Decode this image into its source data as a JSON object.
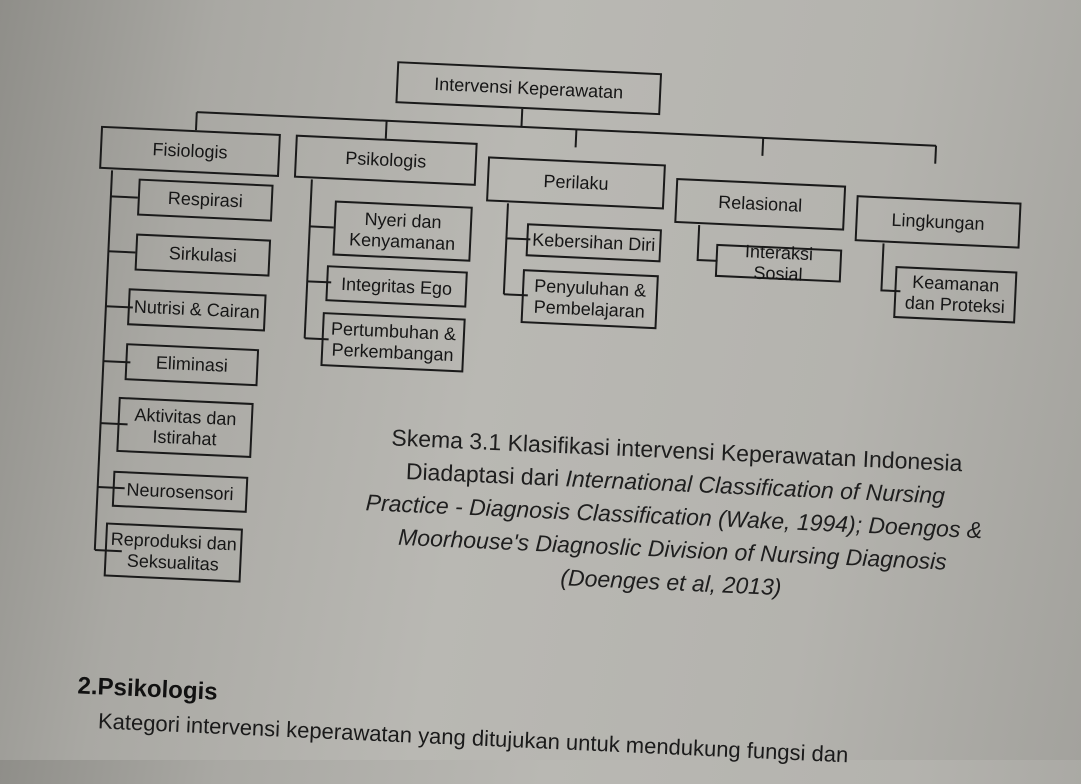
{
  "diagram": {
    "root": "Intervensi Keperawatan",
    "categories": [
      {
        "label": "Fisiologis",
        "children": [
          "Respirasi",
          "Sirkulasi",
          "Nutrisi & Cairan",
          "Eliminasi",
          "Aktivitas dan\nIstirahat",
          "Neurosensori",
          "Reproduksi dan\nSeksualitas"
        ]
      },
      {
        "label": "Psikologis",
        "children": [
          "Nyeri dan\nKenyamanan",
          "Integritas Ego",
          "Pertumbuhan &\nPerkembangan"
        ]
      },
      {
        "label": "Perilaku",
        "children": [
          "Kebersihan Diri",
          "Penyuluhan &\nPembelajaran"
        ]
      },
      {
        "label": "Relasional",
        "children": [
          "Interaksi Sosial"
        ]
      },
      {
        "label": "Lingkungan",
        "children": [
          "Keamanan\ndan Proteksi"
        ]
      }
    ]
  },
  "caption": {
    "line1": "Skema 3.1 Klasifikasi intervensi Keperawatan Indonesia",
    "line2_plain": "Diadaptasi dari ",
    "line2_italic": "International Classification of Nursing",
    "line3": "Practice - Diagnosis Classification (Wake, 1994); Doengos &",
    "line4": "Moorhouse's Diagnoslic Division of Nursing Diagnosis",
    "line5": "(Doenges et al, 2013)"
  },
  "section": {
    "heading": "2.Psikologis",
    "text": "Kategori intervensi keperawatan yang ditujukan untuk mendukung fungsi dan"
  }
}
